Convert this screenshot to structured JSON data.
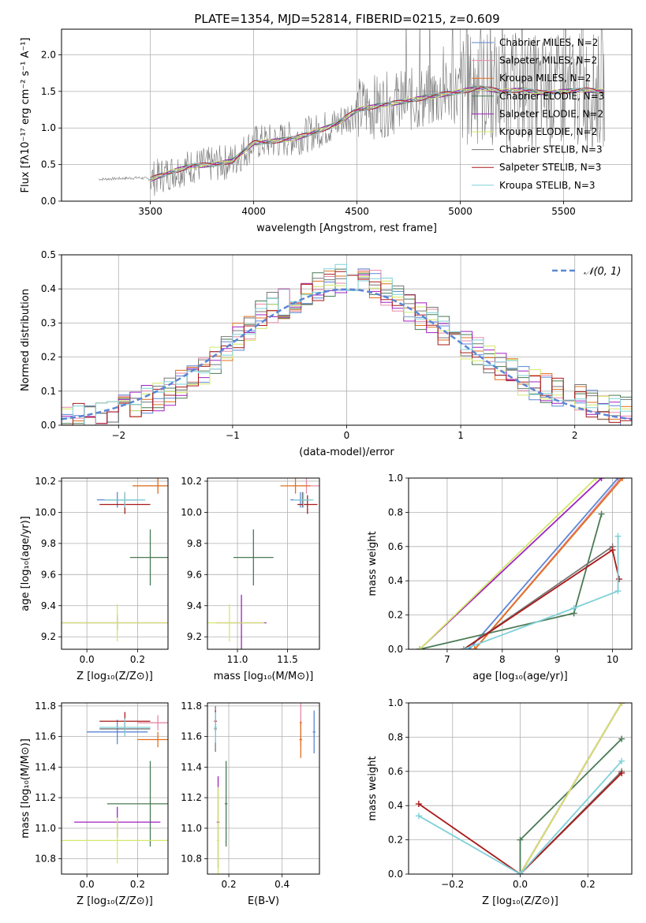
{
  "title": "PLATE=1354, MJD=52814, FIBERID=0215, z=0.609",
  "colors": {
    "chabrier_miles": "#5b86d4",
    "salpeter_miles": "#e58aa8",
    "kroupa_miles": "#e0701e",
    "chabrier_elodie": "#4a7a55",
    "salpeter_elodie": "#a020c0",
    "kroupa_elodie": "#d4e86a",
    "chabrier_stelib": "#777777",
    "salpeter_stelib": "#aa1a1a",
    "kroupa_stelib": "#7fd0d8",
    "normal_curve": "#5b86d4",
    "grid": "#b0b0b0"
  },
  "chart_data": [
    {
      "id": "spectrum",
      "type": "line",
      "xlabel": "wavelength [Angstrom, rest frame]",
      "ylabel": "Flux [fλ10⁻¹⁷ erg cm⁻² s⁻¹ A⁻¹]",
      "xlim": [
        3070,
        5830
      ],
      "ylim": [
        0,
        2.35
      ],
      "xticks": [
        "3500",
        "4000",
        "4500",
        "5000",
        "5500"
      ],
      "yticks": [
        "0.0",
        "0.5",
        "1.0",
        "1.5",
        "2.0"
      ],
      "legend": [
        "Chabrier MILES, N_SSP=2",
        "Salpeter MILES, N_SSP=2",
        "Kroupa MILES, N_SSP=2",
        "Chabrier ELODIE, N_SSP=3",
        "Salpeter ELODIE, N_SSP=2",
        "Kroupa ELODIE, N_SSP=2",
        "Chabrier STELIB, N_SSP=3",
        "Salpeter STELIB, N_SSP=3",
        "Kroupa STELIB, N_SSP=3"
      ],
      "data_x": [
        3250,
        3450,
        3500,
        3600,
        3700,
        3800,
        3900,
        4000,
        4100,
        4200,
        4300,
        4400,
        4500,
        4600,
        4700,
        4800,
        4900,
        5000,
        5100,
        5200,
        5300,
        5400,
        5500,
        5600,
        5700
      ],
      "data_y": [
        0.3,
        0.32,
        0.3,
        0.4,
        0.48,
        0.5,
        0.55,
        0.8,
        0.82,
        0.86,
        0.95,
        1.05,
        1.25,
        1.3,
        1.35,
        1.4,
        1.45,
        1.5,
        1.55,
        1.5,
        1.52,
        1.48,
        1.5,
        1.52,
        1.5
      ]
    },
    {
      "id": "residuals",
      "type": "bar",
      "xlabel": "(data-model)/error",
      "ylabel": "Normed distribution",
      "xlim": [
        -2.5,
        2.5
      ],
      "ylim": [
        0,
        0.5
      ],
      "xticks": [
        "−2",
        "−1",
        "0",
        "1",
        "2"
      ],
      "yticks": [
        "0.0",
        "0.1",
        "0.2",
        "0.3",
        "0.4",
        "0.5"
      ],
      "legend": [
        "N(0,1)"
      ],
      "bin_edges": [
        -2.5,
        2.5
      ],
      "hist": [
        0.01,
        0.02,
        0.02,
        0.03,
        0.04,
        0.05,
        0.06,
        0.07,
        0.08,
        0.09,
        0.11,
        0.13,
        0.15,
        0.18,
        0.21,
        0.24,
        0.27,
        0.3,
        0.32,
        0.33,
        0.34,
        0.36,
        0.38,
        0.39,
        0.4,
        0.4,
        0.39,
        0.38,
        0.36,
        0.34,
        0.32,
        0.3,
        0.28,
        0.26,
        0.24,
        0.22,
        0.2,
        0.18,
        0.16,
        0.14,
        0.12,
        0.11,
        0.1,
        0.09,
        0.08,
        0.07,
        0.06,
        0.05,
        0.04,
        0.04
      ]
    },
    {
      "id": "age_vs_Z",
      "type": "scatter",
      "xlabel": "Z [log₁₀(Z/Z⊙)]",
      "ylabel": "age  [log₁₀(age/yr)]",
      "xlim": [
        -0.1,
        0.32
      ],
      "ylim": [
        9.12,
        10.22
      ],
      "xticks": [
        "0.0",
        "0.2"
      ],
      "yticks": [
        "9.2",
        "9.4",
        "9.6",
        "9.8",
        "10.0",
        "10.2"
      ]
    },
    {
      "id": "age_vs_mass",
      "type": "scatter",
      "xlabel": "mass [log₁₀(M/M⊙)]",
      "ylabel": "",
      "xlim": [
        10.7,
        11.82
      ],
      "ylim": [
        9.12,
        10.22
      ],
      "xticks": [
        "11.0",
        "11.5"
      ],
      "yticks": [
        "9.2",
        "9.4",
        "9.6",
        "9.8",
        "10.0",
        "10.2"
      ]
    },
    {
      "id": "massweight_vs_age",
      "type": "line",
      "xlabel": "age  [log₁₀(age/yr)]",
      "ylabel": "mass weight",
      "xlim": [
        6.3,
        10.35
      ],
      "ylim": [
        0,
        1
      ],
      "xticks": [
        "7",
        "8",
        "9",
        "10"
      ],
      "yticks": [
        "0.0",
        "0.2",
        "0.4",
        "0.6",
        "0.8",
        "1.0"
      ]
    },
    {
      "id": "mass_vs_Z",
      "type": "scatter",
      "xlabel": "Z [log₁₀(Z/Z⊙)]",
      "ylabel": "mass [log₁₀(M/M⊙)]",
      "xlim": [
        -0.1,
        0.32
      ],
      "ylim": [
        10.7,
        11.82
      ],
      "xticks": [
        "0.0",
        "0.2"
      ],
      "yticks": [
        "10.8",
        "11.0",
        "11.2",
        "11.4",
        "11.6",
        "11.8"
      ]
    },
    {
      "id": "mass_vs_ebv",
      "type": "scatter",
      "xlabel": "E(B-V)",
      "ylabel": "",
      "xlim": [
        0.12,
        0.54
      ],
      "ylim": [
        10.7,
        11.82
      ],
      "xticks": [
        "0.2",
        "0.4"
      ],
      "yticks": [
        "10.8",
        "11.0",
        "11.2",
        "11.4",
        "11.6",
        "11.8"
      ]
    },
    {
      "id": "massweight_vs_Z",
      "type": "line",
      "xlabel": "Z [log₁₀(Z/Z⊙)]",
      "ylabel": "mass weight",
      "xlim": [
        -0.33,
        0.33
      ],
      "ylim": [
        0,
        1
      ],
      "xticks": [
        "−0.2",
        "0.0",
        "0.2"
      ],
      "yticks": [
        "0.0",
        "0.2",
        "0.4",
        "0.6",
        "0.8",
        "1.0"
      ]
    }
  ],
  "models": [
    {
      "key": "chabrier_miles",
      "age": [
        10.08
      ],
      "Z": [
        0.12
      ],
      "mass": [
        11.63
      ],
      "ebv": [
        0.52
      ],
      "mw_age": [
        [
          7.4,
          0
        ],
        [
          10.1,
          1.0
        ]
      ],
      "mw_Z": [
        [
          0,
          0
        ],
        [
          0.3,
          1.0
        ]
      ]
    },
    {
      "key": "salpeter_miles",
      "age": [
        10.17
      ],
      "Z": [
        0.28
      ],
      "mass": [
        11.69
      ],
      "ebv": [
        0.47
      ],
      "mw_age": [
        [
          7.5,
          0
        ],
        [
          10.15,
          1.0
        ]
      ],
      "mw_Z": [
        [
          0,
          0
        ],
        [
          0.3,
          1.0
        ]
      ]
    },
    {
      "key": "kroupa_miles",
      "age": [
        10.17
      ],
      "Z": [
        0.28
      ],
      "mass": [
        11.58
      ],
      "ebv": [
        0.47
      ],
      "mw_age": [
        [
          7.5,
          0
        ],
        [
          10.18,
          1.0
        ]
      ],
      "mw_Z": [
        [
          0,
          0
        ],
        [
          0.3,
          1.0
        ]
      ]
    },
    {
      "key": "chabrier_elodie",
      "age": [
        9.71
      ],
      "Z": [
        0.25
      ],
      "mass": [
        11.16
      ],
      "ebv": [
        0.19
      ],
      "mw_age": [
        [
          6.5,
          0
        ],
        [
          9.3,
          0.21
        ],
        [
          9.8,
          0.79
        ]
      ],
      "mw_Z": [
        [
          0,
          0
        ],
        [
          0,
          0.2
        ],
        [
          0.3,
          0.79
        ]
      ]
    },
    {
      "key": "salpeter_elodie",
      "age": [
        9.29
      ],
      "Z": [
        0.12
      ],
      "mass": [
        11.04
      ],
      "ebv": [
        0.16
      ],
      "mw_age": [
        [
          6.5,
          0
        ],
        [
          9.8,
          1.0
        ]
      ],
      "mw_Z": [
        [
          0,
          0
        ],
        [
          0.3,
          1.0
        ]
      ]
    },
    {
      "key": "kroupa_elodie",
      "age": [
        9.29
      ],
      "Z": [
        0.12
      ],
      "mass": [
        10.92
      ],
      "ebv": [
        0.16
      ],
      "mw_age": [
        [
          6.5,
          0
        ],
        [
          9.7,
          1.0
        ]
      ],
      "mw_Z": [
        [
          0,
          0
        ],
        [
          0.3,
          1.0
        ]
      ]
    },
    {
      "key": "chabrier_stelib",
      "age": [
        10.08
      ],
      "Z": [
        0.15
      ],
      "mass": [
        11.65
      ],
      "ebv": [
        0.15
      ],
      "mw_age": [
        [
          7.3,
          0
        ],
        [
          10.0,
          0.6
        ]
      ],
      "mw_Z": [
        [
          0,
          0
        ],
        [
          0.3,
          0.6
        ]
      ]
    },
    {
      "key": "salpeter_stelib",
      "age": [
        10.05
      ],
      "Z": [
        0.15
      ],
      "mass": [
        11.7
      ],
      "ebv": [
        0.15
      ],
      "mw_age": [
        [
          7.3,
          0
        ],
        [
          10.0,
          0.58
        ],
        [
          10.12,
          0.41
        ]
      ],
      "mw_Z": [
        [
          -0.3,
          0.41
        ],
        [
          0,
          0
        ],
        [
          0.3,
          0.59
        ]
      ]
    },
    {
      "key": "kroupa_stelib",
      "age": [
        10.08
      ],
      "Z": [
        0.15
      ],
      "mass": [
        11.66
      ],
      "ebv": [
        0.15
      ],
      "mw_age": [
        [
          7.3,
          0
        ],
        [
          9.3,
          0.24
        ],
        [
          10.1,
          0.34
        ],
        [
          10.1,
          0.66
        ]
      ],
      "mw_Z": [
        [
          -0.3,
          0.34
        ],
        [
          0,
          0
        ],
        [
          0.3,
          0.66
        ]
      ]
    }
  ]
}
